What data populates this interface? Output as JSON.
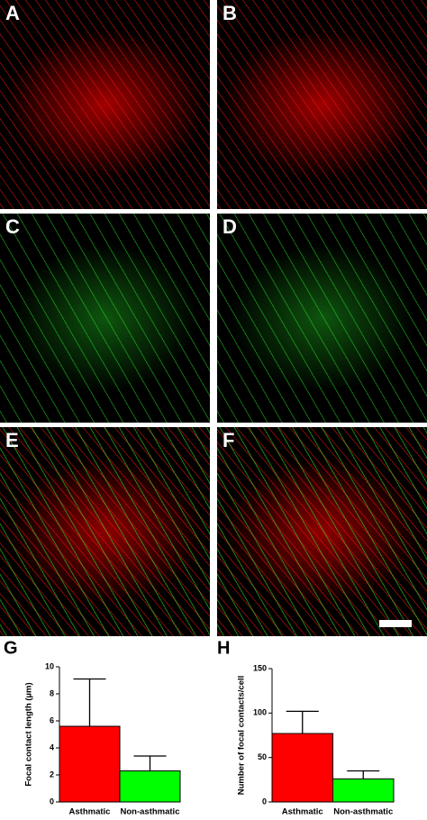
{
  "panels": [
    {
      "label": "A"
    },
    {
      "label": "B"
    },
    {
      "label": "C"
    },
    {
      "label": "D"
    },
    {
      "label": "E"
    },
    {
      "label": "F"
    }
  ],
  "chart_data": [
    {
      "type": "bar",
      "panel": "G",
      "y_label": "Focal contact length (µm)",
      "categories": [
        "Asthmatic",
        "Non-asthmatic"
      ],
      "values": [
        5.6,
        2.3
      ],
      "errors": [
        3.5,
        1.1
      ],
      "colors": [
        "#ff0000",
        "#00ff00"
      ],
      "ylim": [
        0,
        10
      ],
      "yticks": [
        0,
        2,
        4,
        6,
        8,
        10
      ]
    },
    {
      "type": "bar",
      "panel": "H",
      "y_label": "Number of focal contacts/cell",
      "categories": [
        "Asthmatic",
        "Non-asthmatic"
      ],
      "values": [
        77,
        26
      ],
      "errors": [
        25,
        9
      ],
      "colors": [
        "#ff0000",
        "#00ff00"
      ],
      "ylim": [
        0,
        150
      ],
      "yticks": [
        0,
        50,
        100,
        150
      ]
    }
  ]
}
